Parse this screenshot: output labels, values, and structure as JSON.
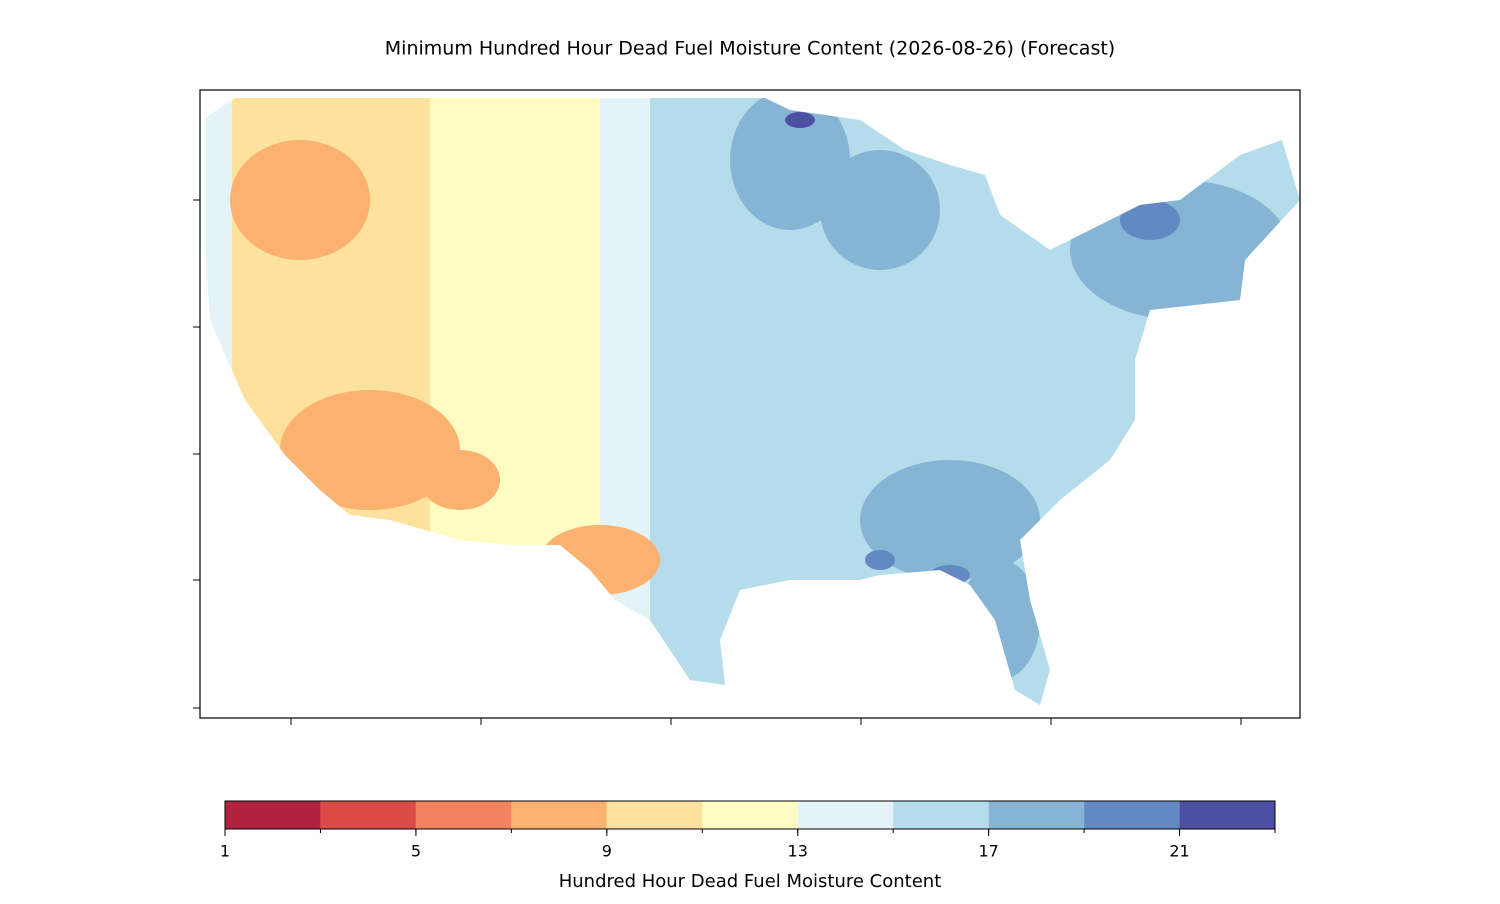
{
  "chart_data": {
    "type": "filled-map",
    "title": "Minimum Hundred Hour Dead Fuel Moisture Content (2026-08-26) (Forecast)",
    "colorbar": {
      "label": "Hundred Hour Dead Fuel Moisture Content",
      "bounds": [
        1,
        3,
        5,
        7,
        9,
        11,
        13,
        15,
        17,
        19,
        21,
        23
      ],
      "colors": [
        "#b2213f",
        "#dc4b46",
        "#f3825e",
        "#fbb16f",
        "#fde19d",
        "#fffcc3",
        "#e4f3f8",
        "#b5dcea",
        "#86b4d5",
        "#6389c2",
        "#4d4fa2"
      ],
      "ticks": [
        1,
        5,
        9,
        13,
        17,
        21
      ]
    }
  }
}
